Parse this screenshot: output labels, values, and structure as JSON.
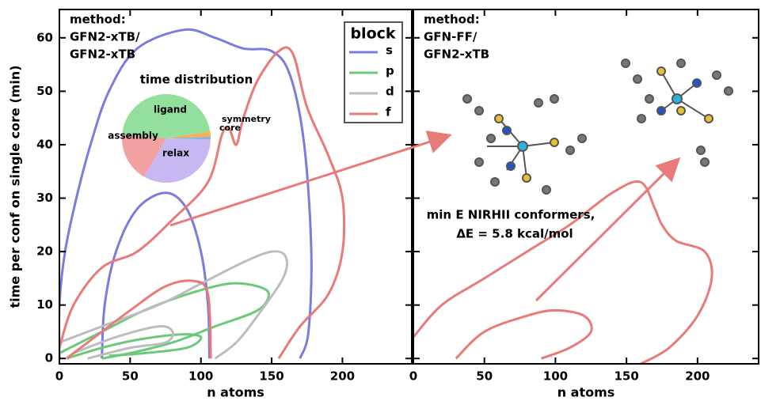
{
  "chart_data": [
    {
      "type": "contour",
      "method": [
        "method:",
        "GFN2-xTB/",
        "GFN2-xTB"
      ],
      "x_label": "n atoms",
      "y_label": "time per conf on single core (min)",
      "xlim": [
        0,
        249
      ],
      "ylim": [
        -1,
        65.3
      ],
      "xticks": [
        0,
        50,
        100,
        150,
        200
      ],
      "yticks": [
        0,
        10,
        20,
        30,
        40,
        50,
        60
      ],
      "legend_title": "block",
      "series": [
        {
          "name": "s",
          "color": "#7b7be0",
          "contours": [
            {
              "x": [
                0,
                0,
                4,
                12,
                22,
                35,
                55,
                88,
                110,
                130,
                150,
                163,
                173,
                178,
                176,
                170
              ],
              "values": [
                0,
                10,
                20,
                30,
                40,
                50,
                58,
                61.5,
                60,
                58,
                57.5,
                53,
                40,
                20,
                5,
                0
              ]
            },
            {
              "x": [
                30,
                32,
                40,
                55,
                75,
                90,
                100,
                105,
                106
              ],
              "values": [
                0,
                10,
                20,
                28,
                31,
                28,
                20,
                10,
                0
              ]
            }
          ]
        },
        {
          "name": "p",
          "color": "#6cc97c",
          "contours": [
            {
              "x": [
                0,
                30,
                60,
                90,
                120,
                140,
                148,
                140,
                110,
                80,
                50,
                30
              ],
              "values": [
                1,
                5,
                9,
                12,
                14,
                13.5,
                12,
                9,
                6,
                3,
                1,
                0
              ]
            },
            {
              "x": [
                5,
                30,
                55,
                85,
                100,
                90,
                60,
                35
              ],
              "values": [
                0,
                2,
                3.5,
                4.5,
                4,
                2,
                1,
                0.5
              ]
            }
          ]
        },
        {
          "name": "d",
          "color": "#bdbdbd",
          "contours": [
            {
              "x": [
                0,
                30,
                70,
                100,
                130,
                150,
                160,
                158,
                140,
                125,
                110
              ],
              "values": [
                3,
                6,
                10,
                14,
                18,
                20,
                19,
                15,
                8,
                3,
                0
              ]
            },
            {
              "x": [
                10,
                40,
                70,
                80,
                75,
                50,
                20
              ],
              "values": [
                1,
                4,
                6,
                5,
                3,
                2,
                0
              ]
            }
          ]
        },
        {
          "name": "f",
          "color": "#e87a7a",
          "contours": [
            {
              "x": [
                0,
                10,
                30,
                55,
                80,
                105,
                115,
                120,
                125,
                130,
                140,
                155,
                165,
                175,
                190,
                200,
                200,
                190,
                170,
                155
              ],
              "values": [
                2,
                10,
                17,
                20,
                26,
                33,
                42,
                43,
                40,
                45,
                52,
                57.5,
                57,
                47,
                38,
                30,
                20,
                12,
                6,
                0
              ]
            },
            {
              "x": [
                5,
                25,
                50,
                75,
                95,
                105,
                107
              ],
              "values": [
                0,
                4,
                9,
                13.5,
                14.5,
                12,
                0
              ]
            }
          ]
        }
      ]
    },
    {
      "type": "pie",
      "title": "time distribution",
      "categories": [
        "ligand",
        "symmetry",
        "core",
        "relax",
        "assembly"
      ],
      "values": [
        46,
        2,
        1,
        33,
        18
      ],
      "colors": [
        "#93df9d",
        "#f5b05a",
        "#8ab4d8",
        "#c7b8f2",
        "#f2a0a0"
      ]
    },
    {
      "type": "contour",
      "method": [
        "method:",
        "GFN-FF/",
        "GFN2-xTB"
      ],
      "x_label": "n atoms",
      "annotation": [
        "min E NIRHII conformers,",
        "ΔE = 5.8 kcal/mol"
      ],
      "xlim": [
        0,
        243
      ],
      "ylim": [
        -1,
        65.3
      ],
      "xticks": [
        0,
        50,
        100,
        150,
        200
      ],
      "yticks": [
        0,
        10,
        20,
        30,
        40,
        50,
        60
      ],
      "series": [
        {
          "color": "#e87a7a",
          "contours": [
            {
              "x": [
                0,
                20,
                50,
                80,
                110,
                140,
                160,
                170,
                175,
                185,
                205,
                210,
                200,
                180,
                160
              ],
              "values": [
                4,
                10,
                15,
                20,
                25,
                31,
                33,
                28,
                25,
                22,
                20,
                15,
                8,
                2,
                -1
              ]
            },
            {
              "x": [
                30,
                50,
                80,
                100,
                120,
                125,
                110,
                90
              ],
              "values": [
                0,
                5,
                8,
                9,
                8,
                5,
                2,
                0
              ]
            }
          ]
        }
      ]
    }
  ]
}
